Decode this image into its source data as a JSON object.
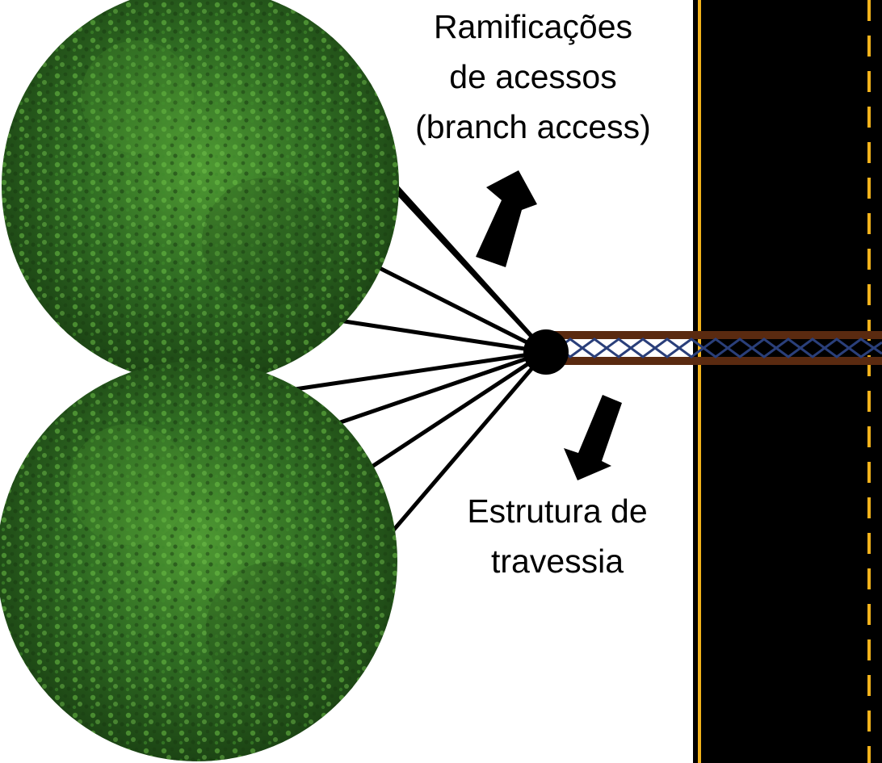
{
  "labels": {
    "branch_access": [
      "Ramificações",
      "de acessos",
      "(branch access)"
    ],
    "crossing_structure": [
      "Estrutura de",
      "travessia"
    ]
  },
  "colors": {
    "foliage_dark": "#1f4a17",
    "foliage_mid": "#2f6b22",
    "foliage_light": "#5aa83a",
    "road": "#000000",
    "road_edge_line": "#f2b21c",
    "bridge_beam": "#5a2a10",
    "bridge_mesh": "#2a3f7a",
    "branch_lines": "#000000"
  },
  "icons": {
    "trees": "tree-canopy-icon",
    "arrows": "arrow-icon",
    "node": "junction-node-icon"
  }
}
